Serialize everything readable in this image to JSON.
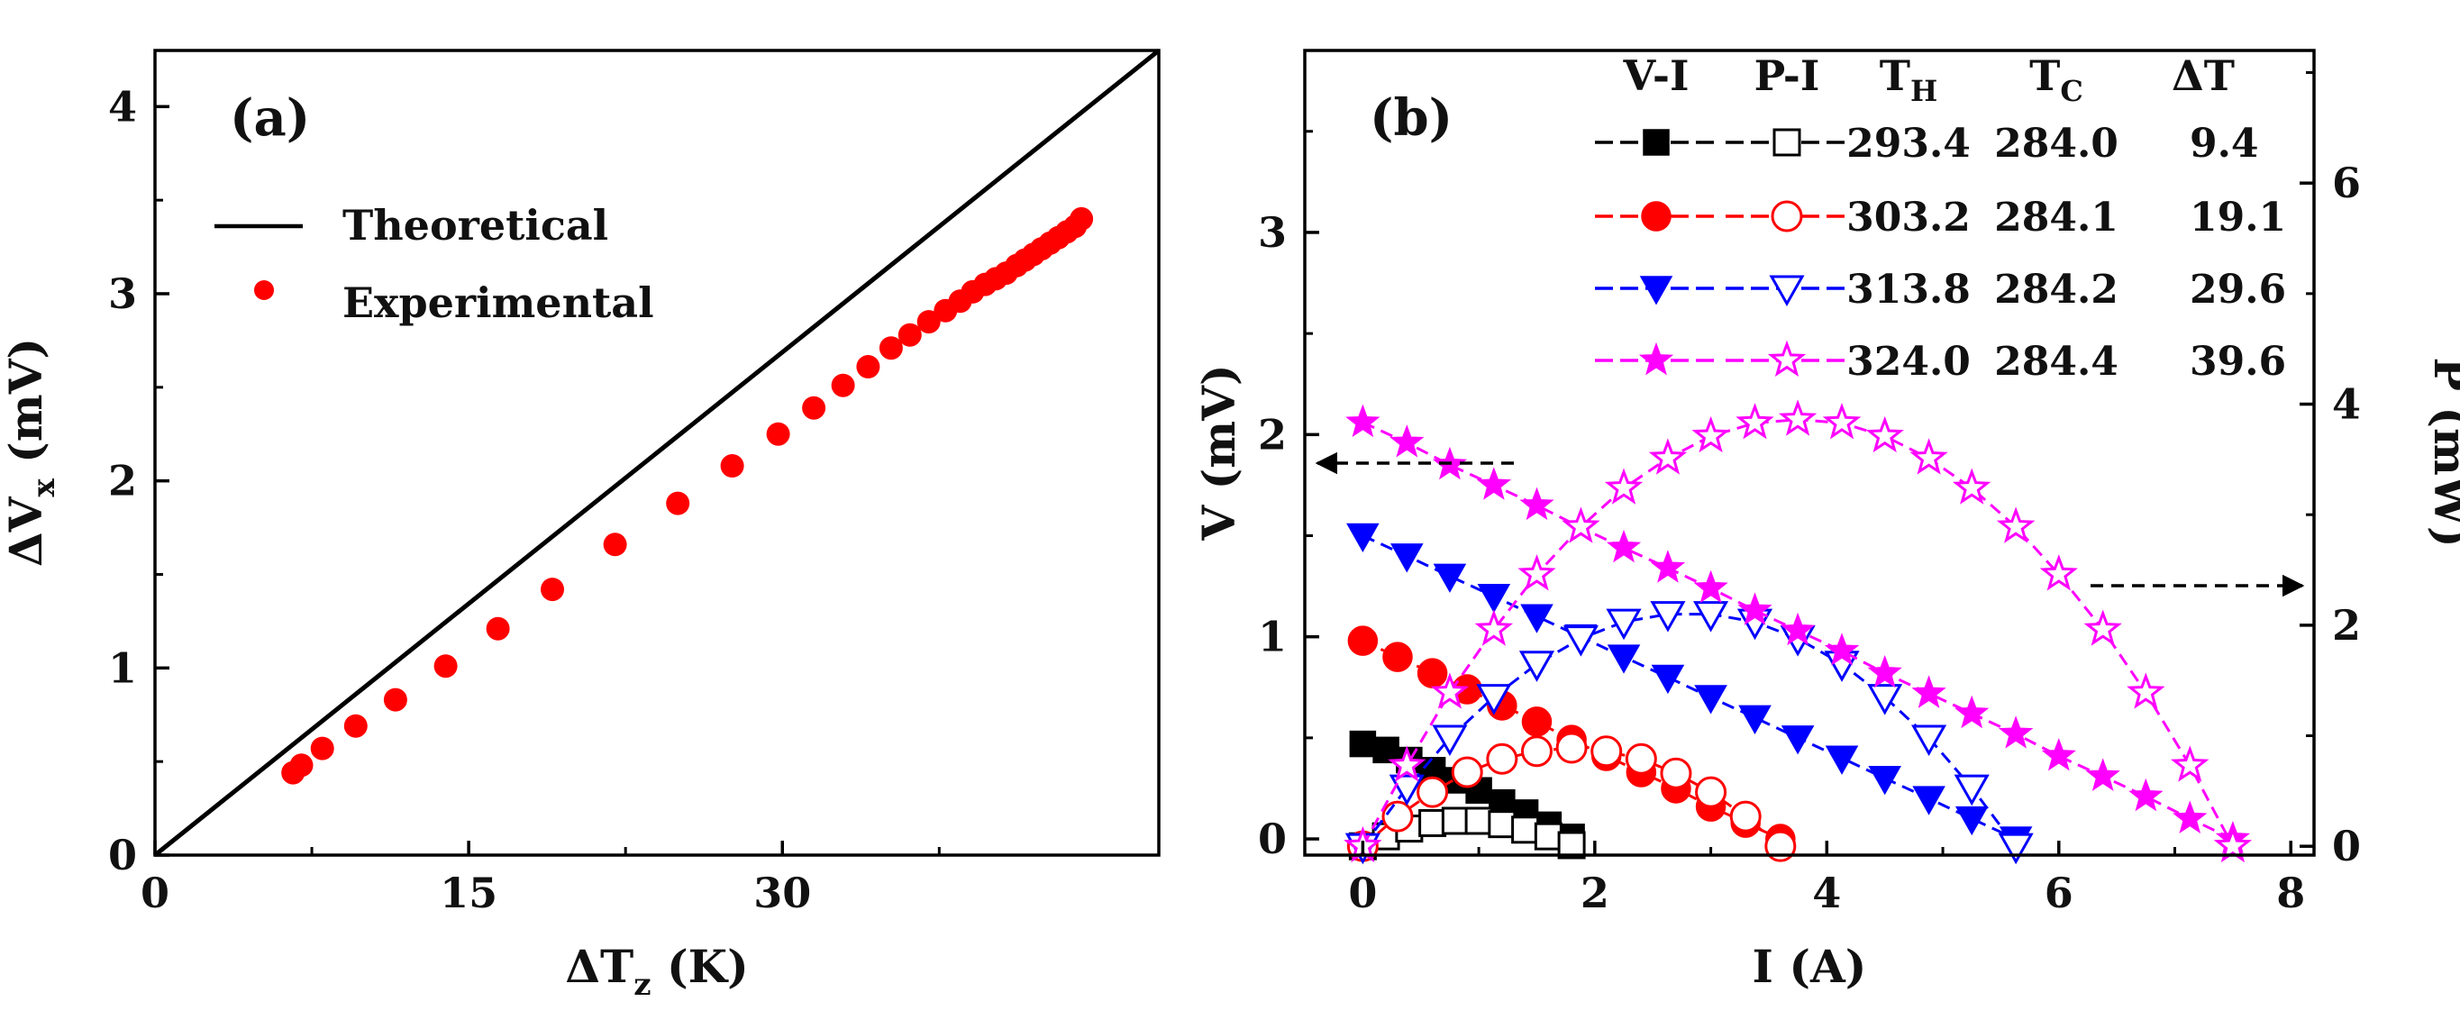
{
  "chart_data": [
    {
      "panel_label": "(a)",
      "type": "scatter",
      "xlabel": "ΔT",
      "xlabel_sub": "z",
      "xlabel_unit": " (K)",
      "ylabel": "ΔV",
      "ylabel_sub": "x",
      "ylabel_unit": " (mV)",
      "xlim": [
        0,
        48
      ],
      "ylim": [
        0,
        4.3
      ],
      "xticks": [
        "0",
        "15",
        "30"
      ],
      "yticks": [
        "0",
        "1",
        "2",
        "3",
        "4"
      ],
      "legend_position": "top-left",
      "series": [
        {
          "name": "Theoretical",
          "style": "line",
          "color": "#000000",
          "x": [
            0,
            48
          ],
          "y": [
            0,
            4.3
          ]
        },
        {
          "name": "Experimental",
          "style": "marker",
          "color": "#ff0000",
          "x": [
            6.6,
            7.0,
            8.0,
            9.6,
            11.5,
            13.9,
            16.4,
            19.0,
            22.0,
            25.0,
            27.6,
            29.8,
            31.5,
            32.9,
            34.1,
            35.2,
            36.1,
            37.0,
            37.8,
            38.5,
            39.1,
            39.7,
            40.2,
            40.7,
            41.2,
            41.6,
            42.0,
            42.4,
            42.8,
            43.2,
            43.6,
            44.0,
            44.3
          ],
          "y": [
            0.44,
            0.48,
            0.57,
            0.69,
            0.83,
            1.01,
            1.21,
            1.42,
            1.66,
            1.88,
            2.08,
            2.25,
            2.39,
            2.51,
            2.61,
            2.71,
            2.78,
            2.85,
            2.91,
            2.96,
            3.01,
            3.05,
            3.08,
            3.11,
            3.15,
            3.18,
            3.21,
            3.24,
            3.27,
            3.3,
            3.33,
            3.36,
            3.4
          ]
        }
      ]
    },
    {
      "panel_label": "(b)",
      "type": "line",
      "xlabel": "I (A)",
      "ylabel": "V (mV)",
      "y2label": "P (mW)",
      "xlim": [
        -0.5,
        8.2
      ],
      "ylim": [
        -0.08,
        3.9
      ],
      "y2lim": [
        -0.08,
        7.2
      ],
      "xticks": [
        "0",
        "2",
        "4",
        "6",
        "8"
      ],
      "yticks": [
        "0",
        "1",
        "2",
        "3"
      ],
      "y2ticks": [
        "0",
        "2",
        "4",
        "6"
      ],
      "legend_headers": [
        "V-I",
        "P-I",
        "T",
        "T",
        "ΔT"
      ],
      "legend_header_subs": [
        "",
        "",
        "H",
        "C",
        ""
      ],
      "series": [
        {
          "th": "293.4",
          "tc": "284.0",
          "dt": "9.4",
          "color": "#000000",
          "marker": "square",
          "I": [
            0.0,
            0.2,
            0.4,
            0.6,
            0.8,
            1.0,
            1.2,
            1.4,
            1.6,
            1.8
          ],
          "V": [
            0.47,
            0.44,
            0.39,
            0.34,
            0.29,
            0.24,
            0.18,
            0.13,
            0.07,
            0.01
          ],
          "P": [
            0.0,
            0.09,
            0.16,
            0.21,
            0.23,
            0.23,
            0.2,
            0.15,
            0.09,
            0.01
          ]
        },
        {
          "th": "303.2",
          "tc": "284.1",
          "dt": "19.1",
          "color": "#ff0000",
          "marker": "circle",
          "I": [
            0.0,
            0.3,
            0.6,
            0.9,
            1.2,
            1.5,
            1.8,
            2.1,
            2.4,
            2.7,
            3.0,
            3.3,
            3.6
          ],
          "V": [
            0.98,
            0.9,
            0.82,
            0.74,
            0.66,
            0.58,
            0.49,
            0.41,
            0.33,
            0.25,
            0.16,
            0.08,
            0.0
          ],
          "P": [
            0.0,
            0.27,
            0.49,
            0.67,
            0.79,
            0.86,
            0.89,
            0.86,
            0.79,
            0.66,
            0.49,
            0.27,
            0.0
          ]
        },
        {
          "th": "313.8",
          "tc": "284.2",
          "dt": "29.6",
          "color": "#0000ff",
          "marker": "triangle-down",
          "I": [
            0.0,
            0.38,
            0.75,
            1.13,
            1.5,
            1.88,
            2.25,
            2.63,
            3.0,
            3.38,
            3.75,
            4.13,
            4.5,
            4.88,
            5.25,
            5.63
          ],
          "V": [
            1.5,
            1.4,
            1.3,
            1.2,
            1.1,
            1.0,
            0.9,
            0.8,
            0.7,
            0.6,
            0.5,
            0.4,
            0.3,
            0.2,
            0.1,
            0.0
          ],
          "P": [
            0.0,
            0.53,
            0.98,
            1.35,
            1.65,
            1.88,
            2.03,
            2.1,
            2.1,
            2.03,
            1.88,
            1.65,
            1.35,
            0.98,
            0.53,
            0.0
          ]
        },
        {
          "th": "324.0",
          "tc": "284.4",
          "dt": "39.6",
          "color": "#ff00ff",
          "marker": "star",
          "I": [
            0.0,
            0.38,
            0.75,
            1.13,
            1.5,
            1.88,
            2.25,
            2.63,
            3.0,
            3.38,
            3.75,
            4.13,
            4.5,
            4.88,
            5.25,
            5.63,
            6.0,
            6.38,
            6.75,
            7.13,
            7.5
          ],
          "V": [
            2.06,
            1.96,
            1.85,
            1.75,
            1.65,
            1.54,
            1.44,
            1.34,
            1.24,
            1.13,
            1.03,
            0.93,
            0.82,
            0.72,
            0.62,
            0.52,
            0.41,
            0.31,
            0.21,
            0.1,
            0.0
          ],
          "P": [
            0.0,
            0.73,
            1.39,
            1.96,
            2.46,
            2.89,
            3.24,
            3.51,
            3.71,
            3.83,
            3.86,
            3.83,
            3.71,
            3.51,
            3.24,
            2.89,
            2.46,
            1.96,
            1.39,
            0.73,
            0.0
          ]
        }
      ]
    }
  ]
}
